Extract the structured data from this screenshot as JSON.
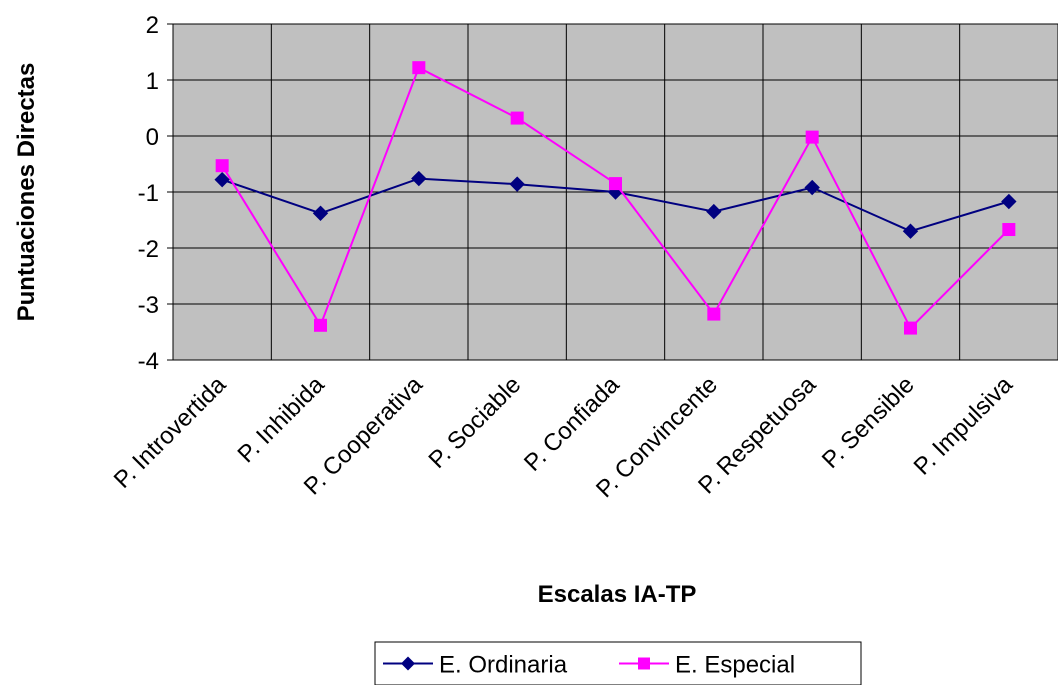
{
  "chart_data": {
    "type": "line",
    "categories": [
      "P. Introvertida",
      "P. Inhibida",
      "P. Cooperativa",
      "P. Sociable",
      "P. Confiada",
      "P. Convincente",
      "P. Respetuosa",
      "P. Sensible",
      "P. Impulsiva"
    ],
    "series": [
      {
        "name": "E. Ordinaria",
        "color": "#000080",
        "marker": "diamond",
        "values": [
          -0.78,
          -1.38,
          -0.76,
          -0.86,
          -1.0,
          -1.35,
          -0.92,
          -1.7,
          -1.17
        ]
      },
      {
        "name": "E. Especial",
        "color": "#ff00ff",
        "marker": "square",
        "values": [
          -0.53,
          -3.38,
          1.22,
          0.32,
          -0.85,
          -3.18,
          -0.02,
          -3.43,
          -1.67
        ]
      }
    ],
    "xlabel": "Escalas IA-TP",
    "ylabel": "Puntuaciones Directas",
    "ylim": [
      -4,
      2
    ],
    "yticks": [
      2,
      1,
      0,
      -1,
      -2,
      -3,
      -4
    ],
    "grid": true,
    "plot_background": "#c0c0c0",
    "legend_position": "bottom-center"
  }
}
